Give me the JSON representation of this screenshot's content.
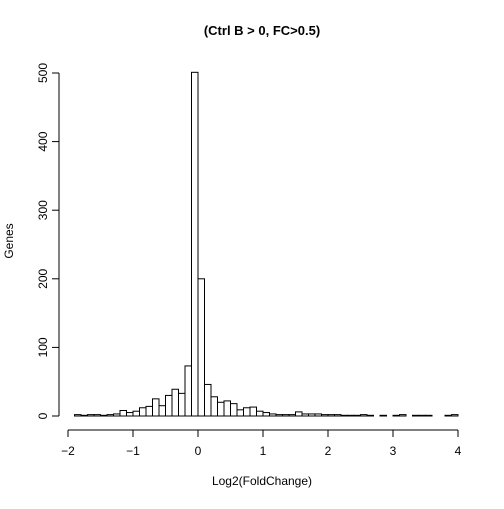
{
  "chart_data": {
    "type": "bar",
    "title": "(Ctrl B > 0, FC>0.5)",
    "xlabel": "Log2(FoldChange)",
    "ylabel": "Genes",
    "xlim": [
      -2,
      4
    ],
    "ylim": [
      0,
      500
    ],
    "x_ticks": [
      -2,
      -1,
      0,
      1,
      2,
      3,
      4
    ],
    "x_tick_labels": [
      "−2",
      "−1",
      "0",
      "1",
      "2",
      "3",
      "4"
    ],
    "y_ticks": [
      0,
      100,
      200,
      300,
      400,
      500
    ],
    "y_tick_labels": [
      "0",
      "100",
      "200",
      "300",
      "400",
      "500"
    ],
    "bin_width": 0.1,
    "bins": [
      {
        "x0": -1.9,
        "x1": -1.8,
        "count": 2
      },
      {
        "x0": -1.8,
        "x1": -1.7,
        "count": 1
      },
      {
        "x0": -1.7,
        "x1": -1.6,
        "count": 2
      },
      {
        "x0": -1.6,
        "x1": -1.5,
        "count": 2
      },
      {
        "x0": -1.5,
        "x1": -1.4,
        "count": 1
      },
      {
        "x0": -1.4,
        "x1": -1.3,
        "count": 2
      },
      {
        "x0": -1.3,
        "x1": -1.2,
        "count": 3
      },
      {
        "x0": -1.2,
        "x1": -1.1,
        "count": 8
      },
      {
        "x0": -1.1,
        "x1": -1.0,
        "count": 5
      },
      {
        "x0": -1.0,
        "x1": -0.9,
        "count": 7
      },
      {
        "x0": -0.9,
        "x1": -0.8,
        "count": 12
      },
      {
        "x0": -0.8,
        "x1": -0.7,
        "count": 14
      },
      {
        "x0": -0.7,
        "x1": -0.6,
        "count": 25
      },
      {
        "x0": -0.6,
        "x1": -0.5,
        "count": 15
      },
      {
        "x0": -0.5,
        "x1": -0.4,
        "count": 30
      },
      {
        "x0": -0.4,
        "x1": -0.3,
        "count": 39
      },
      {
        "x0": -0.3,
        "x1": -0.2,
        "count": 33
      },
      {
        "x0": -0.2,
        "x1": -0.1,
        "count": 73
      },
      {
        "x0": -0.1,
        "x1": 0.0,
        "count": 501
      },
      {
        "x0": 0.0,
        "x1": 0.1,
        "count": 200
      },
      {
        "x0": 0.1,
        "x1": 0.2,
        "count": 46
      },
      {
        "x0": 0.2,
        "x1": 0.3,
        "count": 28
      },
      {
        "x0": 0.3,
        "x1": 0.4,
        "count": 20
      },
      {
        "x0": 0.4,
        "x1": 0.5,
        "count": 22
      },
      {
        "x0": 0.5,
        "x1": 0.6,
        "count": 18
      },
      {
        "x0": 0.6,
        "x1": 0.7,
        "count": 9
      },
      {
        "x0": 0.7,
        "x1": 0.8,
        "count": 12
      },
      {
        "x0": 0.8,
        "x1": 0.9,
        "count": 13
      },
      {
        "x0": 0.9,
        "x1": 1.0,
        "count": 7
      },
      {
        "x0": 1.0,
        "x1": 1.1,
        "count": 5
      },
      {
        "x0": 1.1,
        "x1": 1.2,
        "count": 3
      },
      {
        "x0": 1.2,
        "x1": 1.3,
        "count": 2
      },
      {
        "x0": 1.3,
        "x1": 1.4,
        "count": 2
      },
      {
        "x0": 1.4,
        "x1": 1.5,
        "count": 2
      },
      {
        "x0": 1.5,
        "x1": 1.6,
        "count": 6
      },
      {
        "x0": 1.6,
        "x1": 1.7,
        "count": 3
      },
      {
        "x0": 1.7,
        "x1": 1.8,
        "count": 3
      },
      {
        "x0": 1.8,
        "x1": 1.9,
        "count": 3
      },
      {
        "x0": 1.9,
        "x1": 2.0,
        "count": 2
      },
      {
        "x0": 2.0,
        "x1": 2.1,
        "count": 2
      },
      {
        "x0": 2.1,
        "x1": 2.2,
        "count": 2
      },
      {
        "x0": 2.2,
        "x1": 2.3,
        "count": 1
      },
      {
        "x0": 2.3,
        "x1": 2.4,
        "count": 1
      },
      {
        "x0": 2.4,
        "x1": 2.5,
        "count": 1
      },
      {
        "x0": 2.5,
        "x1": 2.6,
        "count": 2
      },
      {
        "x0": 2.6,
        "x1": 2.7,
        "count": 1
      },
      {
        "x0": 2.7,
        "x1": 2.8,
        "count": 0
      },
      {
        "x0": 2.8,
        "x1": 2.9,
        "count": 1
      },
      {
        "x0": 2.9,
        "x1": 3.0,
        "count": 0
      },
      {
        "x0": 3.0,
        "x1": 3.1,
        "count": 1
      },
      {
        "x0": 3.1,
        "x1": 3.2,
        "count": 2
      },
      {
        "x0": 3.2,
        "x1": 3.3,
        "count": 0
      },
      {
        "x0": 3.3,
        "x1": 3.4,
        "count": 1
      },
      {
        "x0": 3.4,
        "x1": 3.5,
        "count": 1
      },
      {
        "x0": 3.5,
        "x1": 3.6,
        "count": 1
      },
      {
        "x0": 3.6,
        "x1": 3.7,
        "count": 0
      },
      {
        "x0": 3.7,
        "x1": 3.8,
        "count": 0
      },
      {
        "x0": 3.8,
        "x1": 3.9,
        "count": 1
      },
      {
        "x0": 3.9,
        "x1": 4.0,
        "count": 2
      }
    ],
    "grid": false,
    "legend": "none",
    "colors": {
      "bar_fill": "#ffffff",
      "bar_stroke": "#000000"
    }
  }
}
